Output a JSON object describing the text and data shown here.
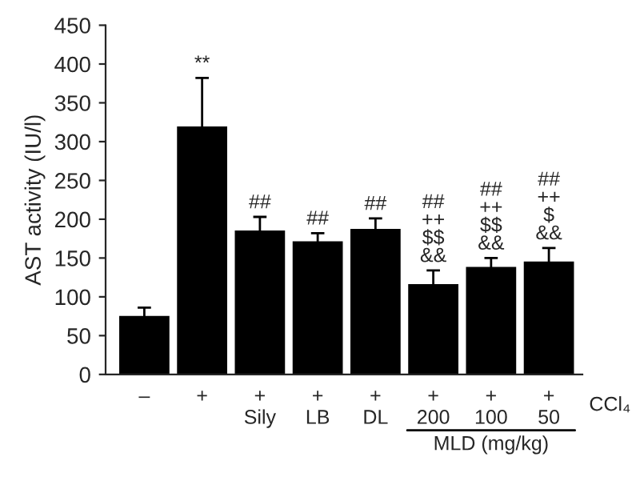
{
  "chart_data": {
    "type": "bar",
    "ylabel": "AST activity (IU/l)",
    "categories": [
      "–",
      "+",
      "+\nSily",
      "+\nLB",
      "+\nDL",
      "+\n200",
      "+\n100",
      "+\n50"
    ],
    "values": [
      74,
      318,
      184,
      170,
      186,
      115,
      137,
      144
    ],
    "errors": [
      12,
      64,
      19,
      12,
      15,
      19,
      13,
      19
    ],
    "color": "#000000",
    "ylim": [
      0,
      450
    ],
    "yticks": [
      0,
      50,
      100,
      150,
      200,
      250,
      300,
      350,
      400,
      450
    ],
    "grid": false,
    "annotations": [
      {
        "text": "**",
        "x": "+",
        "y": 382
      },
      {
        "text": "##",
        "x": "+\nSily",
        "y": 203
      },
      {
        "text": "##",
        "x": "+\nLB",
        "y": 182
      },
      {
        "text": "##",
        "x": "+\nDL",
        "y": 201
      },
      {
        "text": "##\n++\n$$\n&&",
        "x": "+\n200",
        "y": 134
      },
      {
        "text": "##\n++\n$$\n&&",
        "x": "+\n100",
        "y": 150
      },
      {
        "text": "##\n++\n$\n&&",
        "x": "+\n50",
        "y": 163
      },
      "CCl₄",
      "MLD (mg/kg)"
    ]
  }
}
